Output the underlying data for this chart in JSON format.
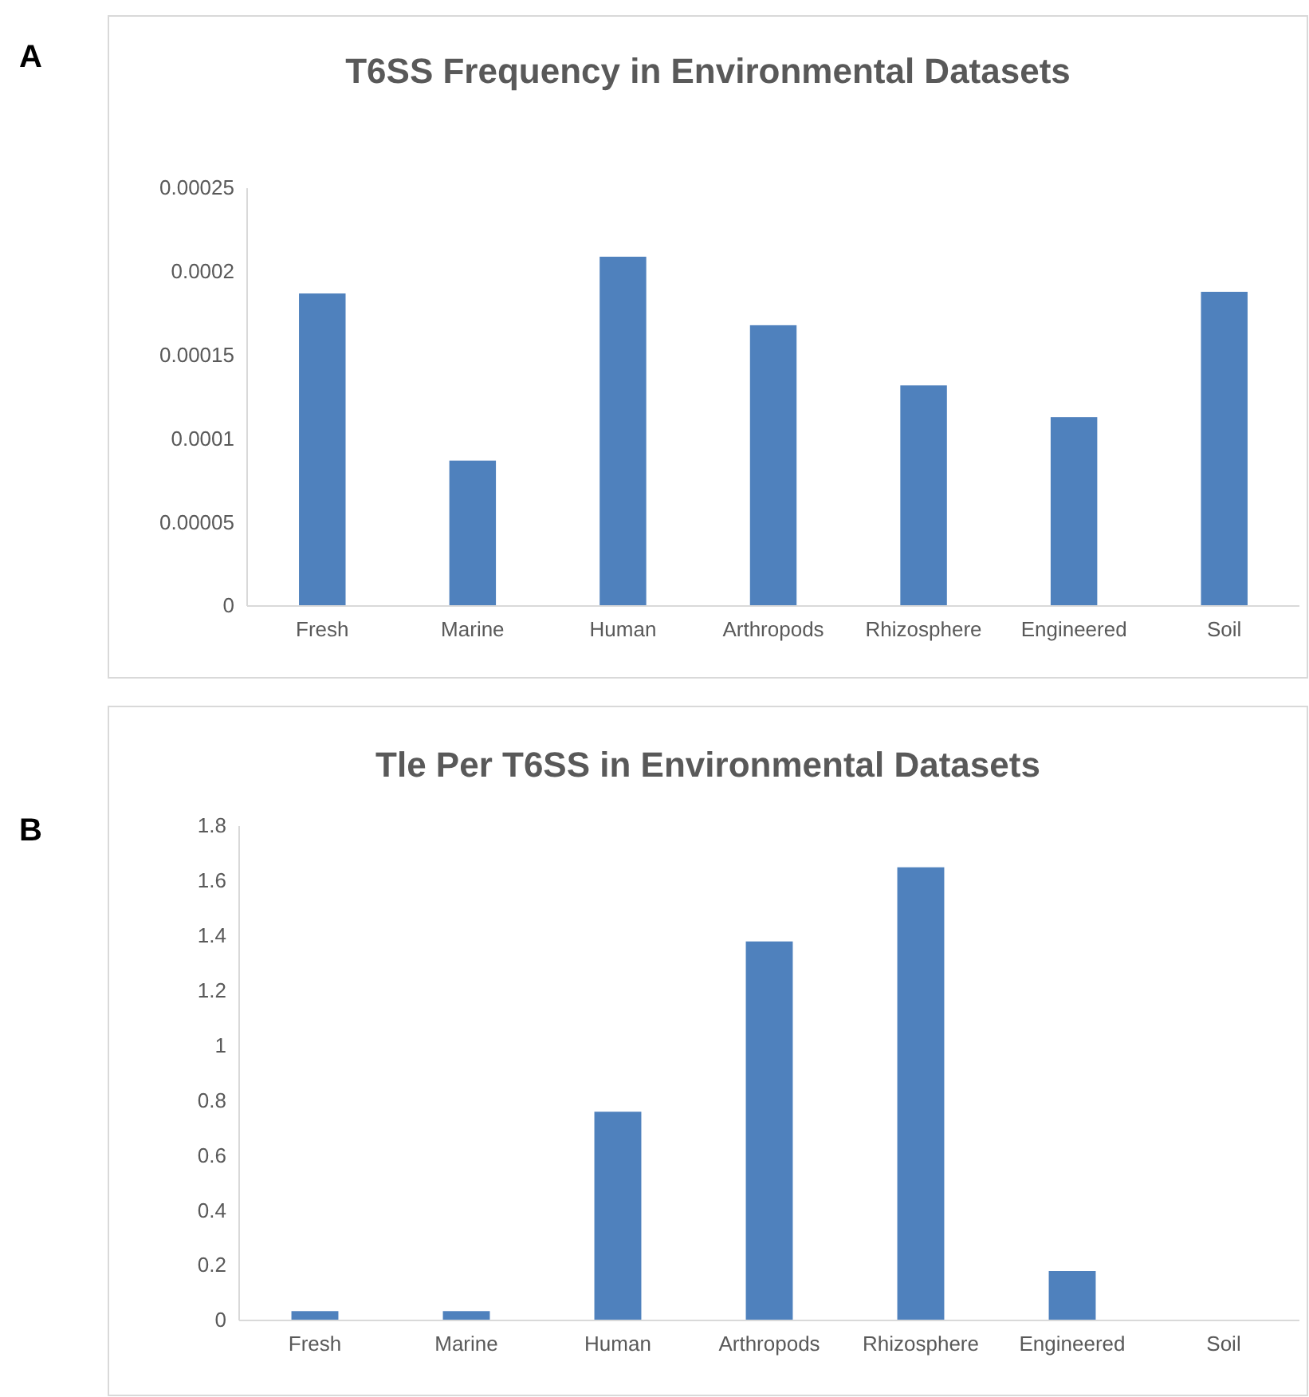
{
  "chart_data": [
    {
      "type": "bar",
      "title": "T6SS Frequency in Environmental Datasets",
      "annotations": [
        "A"
      ],
      "categories": [
        "Fresh",
        "Marine",
        "Human",
        "Arthropods",
        "Rhizosphere",
        "Engineered",
        "Soil"
      ],
      "values": [
        0.000187,
        8.7e-05,
        0.000209,
        0.000168,
        0.000132,
        0.000113,
        0.000188
      ],
      "color": "#4f81bd",
      "ylim": [
        0,
        0.00025
      ],
      "yticks": [
        0,
        {
          "value": 5e-05,
          "label": "0.00005"
        },
        0.0001,
        0.00015,
        0.0002,
        0.00025
      ],
      "grid": false
    },
    {
      "type": "bar",
      "title": "Tle Per T6SS in Environmental Datasets",
      "annotations": [
        "B"
      ],
      "categories": [
        "Fresh",
        "Marine",
        "Human",
        "Arthropods",
        "Rhizosphere",
        "Engineered",
        "Soil"
      ],
      "values": [
        0.034,
        0.034,
        0.76,
        1.38,
        1.65,
        0.18,
        0
      ],
      "color": "#4f81bd",
      "ylim": [
        0,
        1.8
      ],
      "yticks": [
        0,
        0.2,
        0.4,
        0.6,
        0.8,
        1,
        1.2,
        1.4,
        1.6,
        1.8
      ],
      "grid": false
    }
  ]
}
